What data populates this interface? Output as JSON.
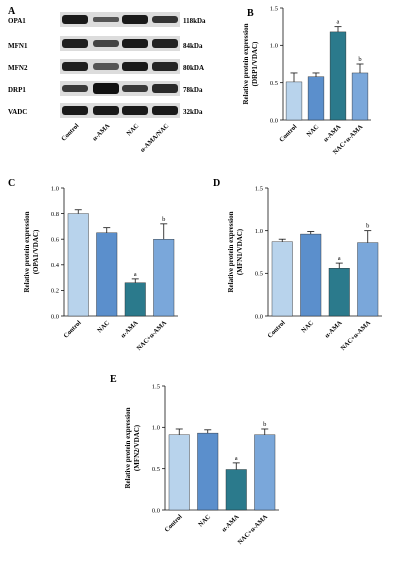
{
  "blot": {
    "letter": "A",
    "rows": [
      {
        "name": "OPA1",
        "kda": "118kDa"
      },
      {
        "name": "MFN1",
        "kda": "84kDa"
      },
      {
        "name": "MFN2",
        "kda": "80kDA"
      },
      {
        "name": "DRP1",
        "kda": "78kDa"
      },
      {
        "name": "VADC",
        "kda": "32kDa"
      }
    ],
    "lanes": [
      "Control",
      "α-AMA",
      "NAC",
      "α-AMA/NAC"
    ]
  },
  "colors": {
    "control": "#b8d3ec",
    "nac": "#5b8fcc",
    "ama": "#2b7a8c",
    "nac_ama": "#7aa7da"
  },
  "chart_data": [
    {
      "letter": "B",
      "type": "bar",
      "categories": [
        "Control",
        "NAC",
        "α-AMA",
        "NAC+α-AMA"
      ],
      "values": [
        0.51,
        0.58,
        1.18,
        0.63
      ],
      "errors": [
        0.12,
        0.05,
        0.07,
        0.12
      ],
      "significance": [
        "",
        "",
        "a",
        "b"
      ],
      "ylabel_lines": [
        "Relative protein expression",
        "(DRP1/VDAC)"
      ],
      "ylim": [
        0,
        1.5
      ],
      "yticks": [
        "0.0",
        "0.5",
        "1.0",
        "1.5"
      ]
    },
    {
      "letter": "C",
      "type": "bar",
      "categories": [
        "Control",
        "NAC",
        "α-AMA",
        "NAC+α-AMA"
      ],
      "values": [
        0.8,
        0.65,
        0.26,
        0.6
      ],
      "errors": [
        0.03,
        0.04,
        0.03,
        0.12
      ],
      "significance": [
        "",
        "",
        "a",
        "b"
      ],
      "ylabel_lines": [
        "Relative protein expression",
        "(OPA1/VDAC)"
      ],
      "ylim": [
        0,
        1.0
      ],
      "yticks": [
        "0.0",
        "0.2",
        "0.4",
        "0.6",
        "0.8",
        "1.0"
      ]
    },
    {
      "letter": "D",
      "type": "bar",
      "categories": [
        "Control",
        "NAC",
        "α-AMA",
        "NAC+α-AMA"
      ],
      "values": [
        0.87,
        0.96,
        0.56,
        0.86
      ],
      "errors": [
        0.03,
        0.03,
        0.06,
        0.14
      ],
      "significance": [
        "",
        "",
        "a",
        "b"
      ],
      "ylabel_lines": [
        "Relative protein expression",
        "(MFN1/VDAC)"
      ],
      "ylim": [
        0,
        1.5
      ],
      "yticks": [
        "0.0",
        "0.5",
        "1.0",
        "1.5"
      ]
    },
    {
      "letter": "E",
      "type": "bar",
      "categories": [
        "Control",
        "NAC",
        "α-AMA",
        "NAC+α-AMA"
      ],
      "values": [
        0.91,
        0.93,
        0.49,
        0.91
      ],
      "errors": [
        0.07,
        0.04,
        0.08,
        0.07
      ],
      "significance": [
        "",
        "",
        "a",
        "b"
      ],
      "ylabel_lines": [
        "Relative protein expression",
        "(MFN2/VDAC)"
      ],
      "ylim": [
        0,
        1.5
      ],
      "yticks": [
        "0.0",
        "0.5",
        "1.0",
        "1.5"
      ]
    }
  ]
}
